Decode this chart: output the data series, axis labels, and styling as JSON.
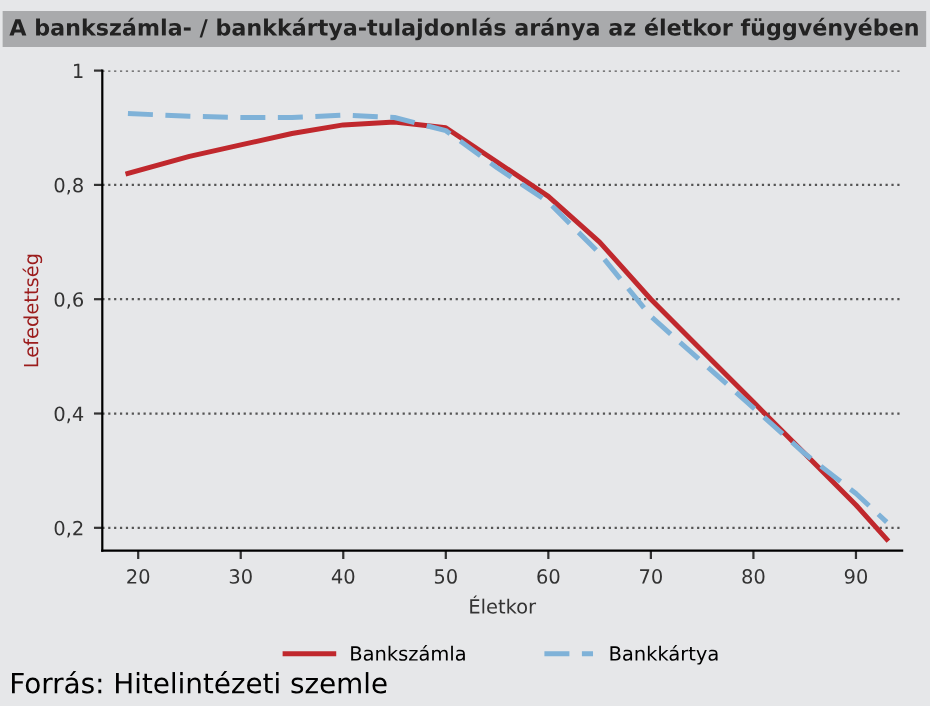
{
  "chart_data": {
    "type": "line",
    "title": "A bankszámla- / bankkártya-tulajdonlás aránya az életkor függvényében",
    "xlabel": "Életkor",
    "ylabel": "Lefedettség",
    "x": [
      19,
      25,
      30,
      35,
      40,
      45,
      50,
      55,
      60,
      65,
      70,
      75,
      80,
      85,
      90,
      93
    ],
    "series": [
      {
        "name": "Bankszámla",
        "color": "#c0282d",
        "line_style": "solid",
        "values": [
          0.82,
          0.85,
          0.87,
          0.89,
          0.905,
          0.91,
          0.9,
          0.84,
          0.78,
          0.7,
          0.6,
          0.51,
          0.42,
          0.33,
          0.24,
          0.18
        ]
      },
      {
        "name": "Bankkártya",
        "color": "#7fb2d8",
        "line_style": "dashed",
        "values": [
          0.925,
          0.92,
          0.918,
          0.918,
          0.922,
          0.918,
          0.895,
          0.83,
          0.77,
          0.68,
          0.57,
          0.49,
          0.41,
          0.33,
          0.26,
          0.21
        ]
      }
    ],
    "xlim": [
      16.5,
      94.5
    ],
    "ylim": [
      0.16,
      1
    ],
    "xticks": [
      20,
      30,
      40,
      50,
      60,
      70,
      80,
      90
    ],
    "yticks": [
      {
        "value": 0.2,
        "label": "0,2"
      },
      {
        "value": 0.4,
        "label": "0,4"
      },
      {
        "value": 0.6,
        "label": "0,6"
      },
      {
        "value": 0.8,
        "label": "0,8"
      },
      {
        "value": 1,
        "label": "1"
      }
    ],
    "grid": "y",
    "legend": "bottom",
    "marker": "none",
    "annotations": [
      "Forrás: Hitelintézeti szemle"
    ]
  }
}
